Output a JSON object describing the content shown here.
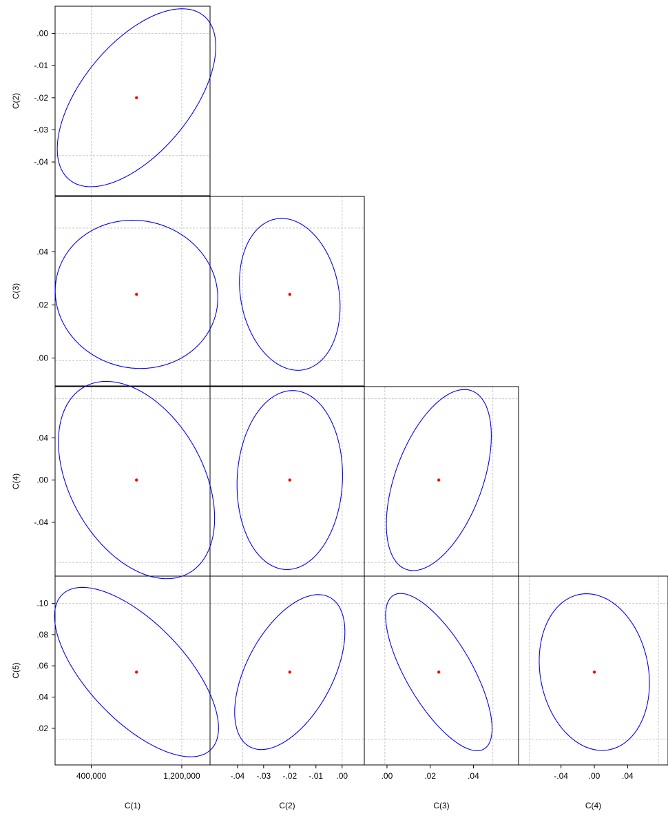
{
  "chart_data": {
    "type": "scatter",
    "subtype": "confidence-ellipse-matrix",
    "grid": "dashed",
    "colors": {
      "ellipse": "#0000ff",
      "point": "#ff0000",
      "grid": "#c8c8c8",
      "frame": "#000000"
    },
    "variables": [
      {
        "name": "C(1)",
        "center": 800000,
        "ci_lo": 400000,
        "ci_hi": 1200000,
        "ticks": [
          400000,
          1200000
        ],
        "tick_labels": [
          "400,000",
          "1,200,000"
        ],
        "range": [
          80000,
          1450000
        ]
      },
      {
        "name": "C(2)",
        "center": -0.02,
        "ci_lo": -0.038,
        "ci_hi": 0.0,
        "ticks": [
          -0.04,
          -0.03,
          -0.02,
          -0.01,
          0.0
        ],
        "tick_labels": [
          "-.04",
          "-.03",
          "-.02",
          "-.01",
          ".00"
        ],
        "range": [
          -0.0505,
          0.0085
        ]
      },
      {
        "name": "C(3)",
        "center": 0.024,
        "ci_lo": -0.001,
        "ci_hi": 0.049,
        "ticks": [
          0.0,
          0.02,
          0.04
        ],
        "tick_labels": [
          ".00",
          ".02",
          ".04"
        ],
        "range": [
          -0.0105,
          0.0609
        ]
      },
      {
        "name": "C(4)",
        "center": 0.0,
        "ci_lo": -0.078,
        "ci_hi": 0.077,
        "ticks": [
          -0.04,
          0.0,
          0.04
        ],
        "tick_labels": [
          "-.04",
          ".00",
          ".04"
        ],
        "range": [
          -0.091,
          0.0885
        ]
      },
      {
        "name": "C(5)",
        "center": 0.056,
        "ci_lo": 0.013,
        "ci_hi": 0.1,
        "ticks": [
          0.02,
          0.04,
          0.06,
          0.08,
          0.1
        ],
        "tick_labels": [
          ".02",
          ".04",
          ".06",
          ".08",
          ".10"
        ],
        "range": [
          -0.0035,
          0.1175
        ]
      }
    ],
    "pairs": [
      {
        "x": "C(1)",
        "y": "C(2)",
        "center": [
          800000,
          -0.02
        ],
        "rx": 815000,
        "ry": -0.0223,
        "ellipse": {
          "p1": [
            -0.476,
            0.88
          ],
          "p2": [
            0.88,
            0.476
          ],
          "s1": 1.369,
          "s2": 0.638
        }
      },
      {
        "x": "C(1)",
        "y": "C(3)",
        "center": [
          800000,
          0.024
        ],
        "rx": 800000,
        "ry": 0.025,
        "ellipse": {
          "p1": [
            -0.106,
            0.994
          ],
          "p2": [
            0.994,
            0.106
          ],
          "s1": 1.12,
          "s2": 0.896
        }
      },
      {
        "x": "C(1)",
        "y": "C(4)",
        "center": [
          800000,
          0.0
        ],
        "rx": 815000,
        "ry": 0.0775,
        "ellipse": {
          "p1": [
            -0.399,
            0.917
          ],
          "p2": [
            0.917,
            0.399
          ],
          "s1": 1.275,
          "s2": 0.739
        }
      },
      {
        "x": "C(1)",
        "y": "C(5)",
        "center": [
          800000,
          0.056
        ],
        "rx": 815000,
        "ry": 0.0435,
        "ellipse": {
          "p1": [
            -0.518,
            0.855
          ],
          "p2": [
            0.855,
            0.518
          ],
          "s1": 1.415,
          "s2": 0.59
        }
      },
      {
        "x": "C(2)",
        "y": "C(3)",
        "center": [
          -0.02,
          0.024
        ],
        "rx": 0.0223,
        "ry": 0.025,
        "ellipse": {
          "p1": [
            -0.253,
            0.967
          ],
          "p2": [
            0.967,
            0.253
          ],
          "s1": 1.163,
          "s2": 0.839
        }
      },
      {
        "x": "C(2)",
        "y": "C(4)",
        "center": [
          -0.02,
          0.0
        ],
        "rx": 0.0223,
        "ry": 0.0775,
        "ellipse": {
          "p1": [
            0.135,
            0.991
          ],
          "p2": [
            0.991,
            -0.135
          ],
          "s1": 1.097,
          "s2": 0.901
        }
      },
      {
        "x": "C(2)",
        "y": "C(5)",
        "center": [
          -0.02,
          0.056
        ],
        "rx": 0.0223,
        "ry": 0.0435,
        "ellipse": {
          "p1": [
            0.573,
            0.82
          ],
          "p2": [
            0.82,
            -0.573
          ],
          "s1": 1.301,
          "s2": 0.709
        }
      },
      {
        "x": "C(3)",
        "y": "C(4)",
        "center": [
          0.024,
          0.0
        ],
        "rx": 0.025,
        "ry": 0.0775,
        "ellipse": {
          "p1": [
            0.609,
            0.793
          ],
          "p2": [
            0.793,
            -0.609
          ],
          "s1": 1.276,
          "s2": 0.736
        }
      },
      {
        "x": "C(3)",
        "y": "C(5)",
        "center": [
          0.024,
          0.056
        ],
        "rx": 0.025,
        "ry": 0.0435,
        "ellipse": {
          "p1": [
            -0.624,
            0.781
          ],
          "p2": [
            0.781,
            0.624
          ],
          "s1": 1.414,
          "s2": 0.563
        }
      },
      {
        "x": "C(4)",
        "y": "C(5)",
        "center": [
          0.0,
          0.056
        ],
        "rx": 0.0775,
        "ry": 0.0435,
        "ellipse": {
          "p1": [
            -0.215,
            0.977
          ],
          "p2": [
            0.977,
            0.215
          ],
          "s1": 1.167,
          "s2": 0.836
        }
      }
    ]
  }
}
